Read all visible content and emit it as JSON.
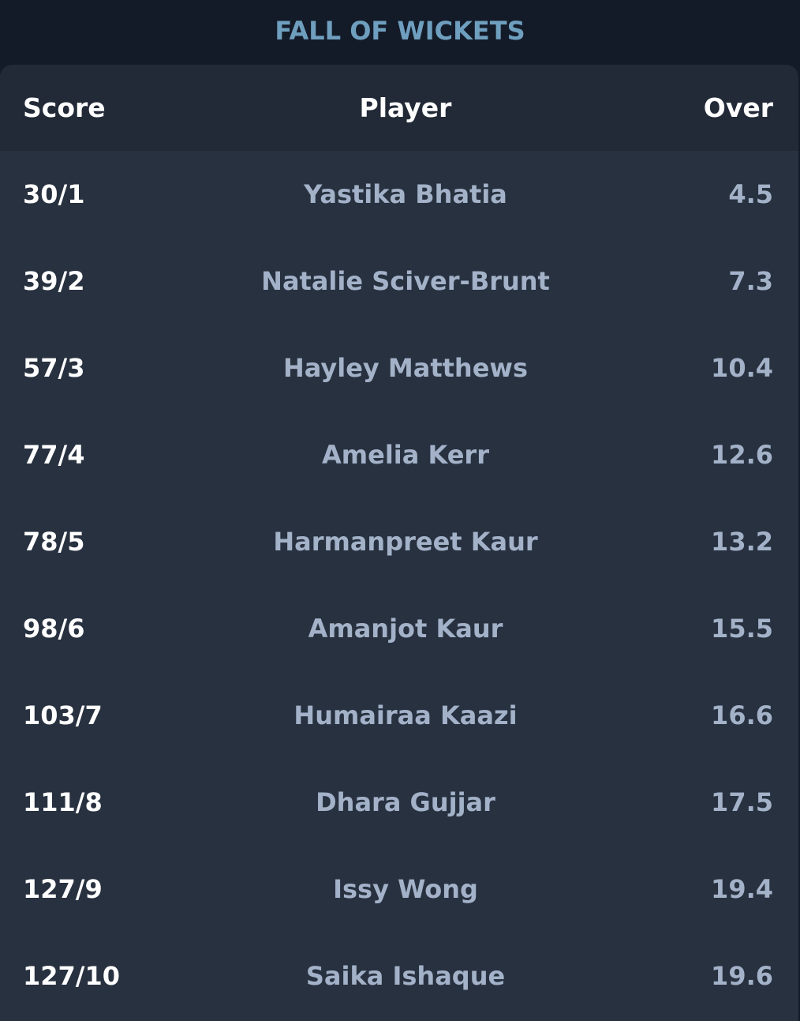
{
  "title": "FALL OF WICKETS",
  "columns": {
    "score": "Score",
    "player": "Player",
    "over": "Over"
  },
  "rows": [
    {
      "score": "30/1",
      "player": "Yastika Bhatia",
      "over": "4.5"
    },
    {
      "score": "39/2",
      "player": "Natalie Sciver-Brunt",
      "over": "7.3"
    },
    {
      "score": "57/3",
      "player": "Hayley Matthews",
      "over": "10.4"
    },
    {
      "score": "77/4",
      "player": "Amelia Kerr",
      "over": "12.6"
    },
    {
      "score": "78/5",
      "player": "Harmanpreet Kaur",
      "over": "13.2"
    },
    {
      "score": "98/6",
      "player": "Amanjot Kaur",
      "over": "15.5"
    },
    {
      "score": "103/7",
      "player": "Humairaa Kaazi",
      "over": "16.6"
    },
    {
      "score": "111/8",
      "player": "Dhara Gujjar",
      "over": "17.5"
    },
    {
      "score": "127/9",
      "player": "Issy Wong",
      "over": "19.4"
    },
    {
      "score": "127/10",
      "player": "Saika Ishaque",
      "over": "19.6"
    }
  ]
}
